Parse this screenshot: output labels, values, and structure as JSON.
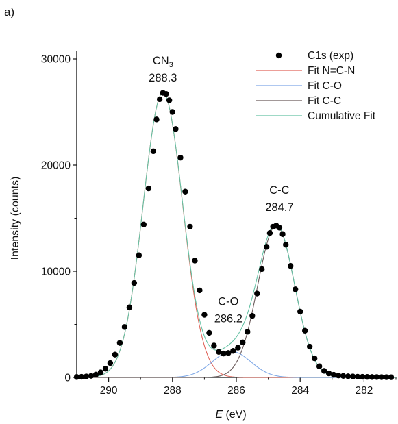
{
  "panel_label": "a)",
  "chart_data": {
    "type": "line",
    "title": "",
    "xlabel_italic": "E",
    "xlabel_unit": " (eV)",
    "ylabel": "Intensity (counts)",
    "xlim": [
      291,
      281
    ],
    "ylim": [
      0,
      30000
    ],
    "x_reversed": true,
    "x_ticks": [
      290,
      288,
      286,
      284,
      282
    ],
    "y_ticks": [
      0,
      10000,
      20000,
      30000
    ],
    "grid": false,
    "legend_position": "top-right",
    "colors": {
      "exp": "#000000",
      "fit_ncn": "#e0655a",
      "fit_co": "#7fa8e6",
      "fit_cc": "#6a5a5a",
      "cumulative": "#66c2a5"
    },
    "legend": [
      {
        "key": "exp",
        "label": "C1s (exp)",
        "marker": "circle"
      },
      {
        "key": "fit_ncn",
        "label": "Fit N=C-N",
        "marker": "line"
      },
      {
        "key": "fit_co",
        "label": "Fit C-O",
        "marker": "line"
      },
      {
        "key": "fit_cc",
        "label": "Fit C-C",
        "marker": "line"
      },
      {
        "key": "cumulative",
        "label": "Cumulative Fit",
        "marker": "line"
      }
    ],
    "annotations": [
      {
        "name": "annotation-cn3",
        "label": "CN",
        "sub": "3",
        "value": "288.3",
        "x": 288.3,
        "y": 29500
      },
      {
        "name": "annotation-co",
        "label": "C-O",
        "value": "286.2",
        "x": 286.25,
        "y": 6800
      },
      {
        "name": "annotation-cc",
        "label": "C-C",
        "value": "284.7",
        "x": 284.65,
        "y": 17300
      }
    ],
    "components": [
      {
        "key": "fit_ncn",
        "name": "Fit N=C-N",
        "center": 288.3,
        "amplitude": 26800,
        "sigma": 0.62
      },
      {
        "key": "fit_co",
        "name": "Fit C-O",
        "center": 286.15,
        "amplitude": 2450,
        "sigma": 0.6
      },
      {
        "key": "fit_cc",
        "name": "Fit C-C",
        "center": 284.75,
        "amplitude": 14300,
        "sigma": 0.58
      }
    ],
    "exp_points": [
      {
        "x": 291.0,
        "y": 40
      },
      {
        "x": 290.85,
        "y": 60
      },
      {
        "x": 290.7,
        "y": 90
      },
      {
        "x": 290.55,
        "y": 150
      },
      {
        "x": 290.4,
        "y": 270
      },
      {
        "x": 290.25,
        "y": 480
      },
      {
        "x": 290.1,
        "y": 820
      },
      {
        "x": 289.95,
        "y": 1350
      },
      {
        "x": 289.8,
        "y": 2150
      },
      {
        "x": 289.65,
        "y": 3250
      },
      {
        "x": 289.5,
        "y": 4750
      },
      {
        "x": 289.35,
        "y": 6600
      },
      {
        "x": 289.2,
        "y": 8900
      },
      {
        "x": 289.05,
        "y": 11500
      },
      {
        "x": 288.9,
        "y": 14400
      },
      {
        "x": 288.75,
        "y": 17800
      },
      {
        "x": 288.6,
        "y": 21300
      },
      {
        "x": 288.5,
        "y": 24300
      },
      {
        "x": 288.4,
        "y": 26200
      },
      {
        "x": 288.3,
        "y": 26800
      },
      {
        "x": 288.2,
        "y": 26700
      },
      {
        "x": 288.1,
        "y": 26100
      },
      {
        "x": 288.0,
        "y": 25000
      },
      {
        "x": 287.9,
        "y": 23400
      },
      {
        "x": 287.75,
        "y": 20700
      },
      {
        "x": 287.6,
        "y": 17500
      },
      {
        "x": 287.45,
        "y": 14200
      },
      {
        "x": 287.3,
        "y": 11000
      },
      {
        "x": 287.15,
        "y": 8200
      },
      {
        "x": 287.0,
        "y": 5900
      },
      {
        "x": 286.85,
        "y": 4200
      },
      {
        "x": 286.7,
        "y": 3000
      },
      {
        "x": 286.55,
        "y": 2400
      },
      {
        "x": 286.4,
        "y": 2250
      },
      {
        "x": 286.25,
        "y": 2300
      },
      {
        "x": 286.1,
        "y": 2500
      },
      {
        "x": 285.95,
        "y": 2800
      },
      {
        "x": 285.8,
        "y": 3300
      },
      {
        "x": 285.65,
        "y": 4300
      },
      {
        "x": 285.5,
        "y": 5800
      },
      {
        "x": 285.35,
        "y": 7900
      },
      {
        "x": 285.2,
        "y": 10200
      },
      {
        "x": 285.05,
        "y": 12300
      },
      {
        "x": 284.95,
        "y": 13600
      },
      {
        "x": 284.85,
        "y": 14200
      },
      {
        "x": 284.75,
        "y": 14300
      },
      {
        "x": 284.65,
        "y": 14100
      },
      {
        "x": 284.55,
        "y": 13500
      },
      {
        "x": 284.45,
        "y": 12500
      },
      {
        "x": 284.3,
        "y": 10500
      },
      {
        "x": 284.15,
        "y": 8300
      },
      {
        "x": 284.0,
        "y": 6200
      },
      {
        "x": 283.85,
        "y": 4400
      },
      {
        "x": 283.7,
        "y": 2900
      },
      {
        "x": 283.55,
        "y": 1800
      },
      {
        "x": 283.4,
        "y": 1050
      },
      {
        "x": 283.25,
        "y": 620
      },
      {
        "x": 283.1,
        "y": 380
      },
      {
        "x": 282.95,
        "y": 250
      },
      {
        "x": 282.8,
        "y": 180
      },
      {
        "x": 282.65,
        "y": 140
      },
      {
        "x": 282.5,
        "y": 110
      },
      {
        "x": 282.35,
        "y": 90
      },
      {
        "x": 282.2,
        "y": 70
      },
      {
        "x": 282.05,
        "y": 60
      },
      {
        "x": 281.9,
        "y": 50
      },
      {
        "x": 281.75,
        "y": 40
      },
      {
        "x": 281.6,
        "y": 35
      },
      {
        "x": 281.45,
        "y": 30
      },
      {
        "x": 281.3,
        "y": 25
      },
      {
        "x": 281.15,
        "y": 20
      }
    ]
  }
}
